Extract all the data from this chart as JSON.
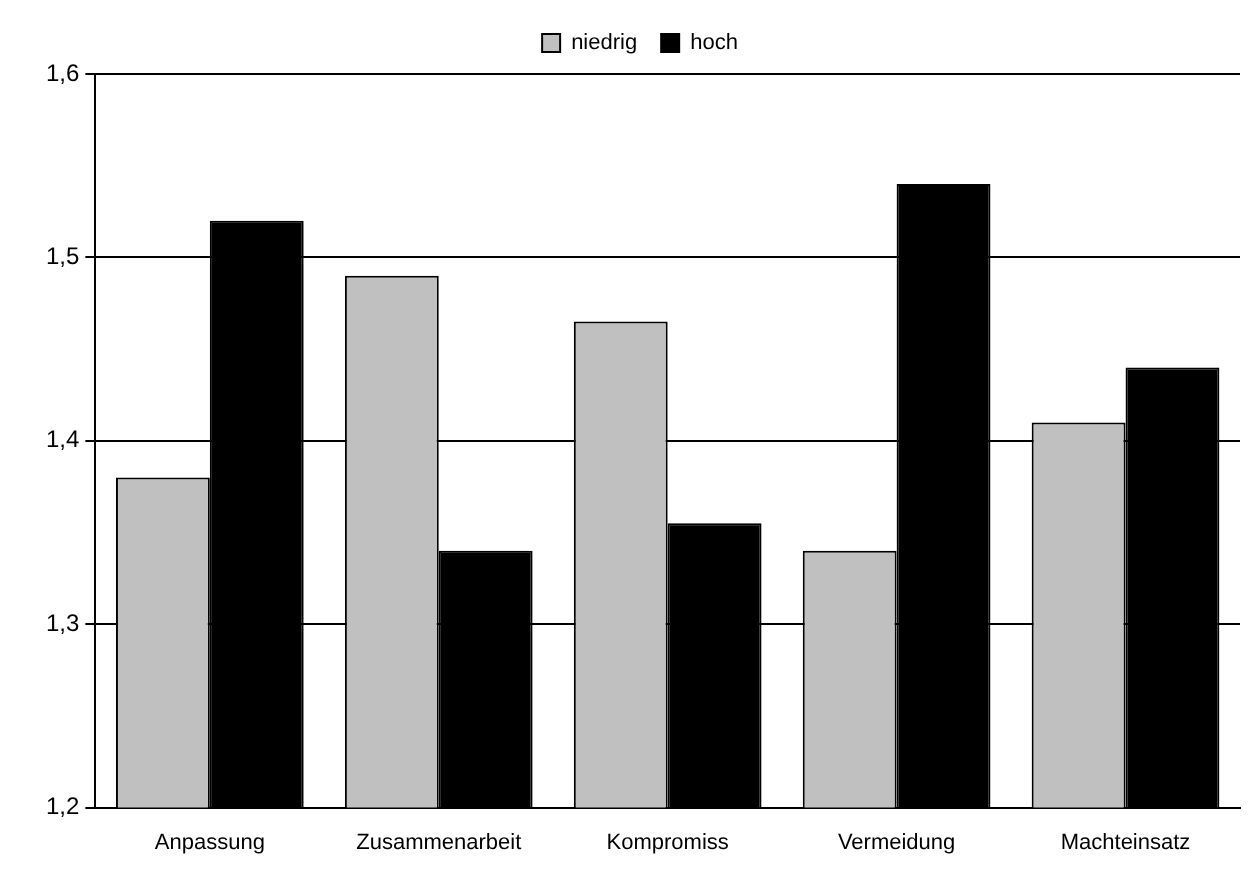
{
  "chart_data": {
    "type": "bar",
    "categories": [
      "Anpassung",
      "Zusammenarbeit",
      "Kompromiss",
      "Vermeidung",
      "Machteinsatz"
    ],
    "series": [
      {
        "name": "niedrig",
        "color": "#c0c0c0",
        "values": [
          1.38,
          1.49,
          1.465,
          1.34,
          1.41
        ]
      },
      {
        "name": "hoch",
        "color": "#000000",
        "values": [
          1.52,
          1.34,
          1.355,
          1.54,
          1.44
        ]
      }
    ],
    "ylim": [
      1.2,
      1.6
    ],
    "yticks": [
      {
        "value": 1.2,
        "label": "1,2"
      },
      {
        "value": 1.3,
        "label": "1,3"
      },
      {
        "value": 1.4,
        "label": "1,4"
      },
      {
        "value": 1.5,
        "label": "1,5"
      },
      {
        "value": 1.6,
        "label": "1,6"
      }
    ],
    "grid": "y",
    "legend": "top"
  }
}
